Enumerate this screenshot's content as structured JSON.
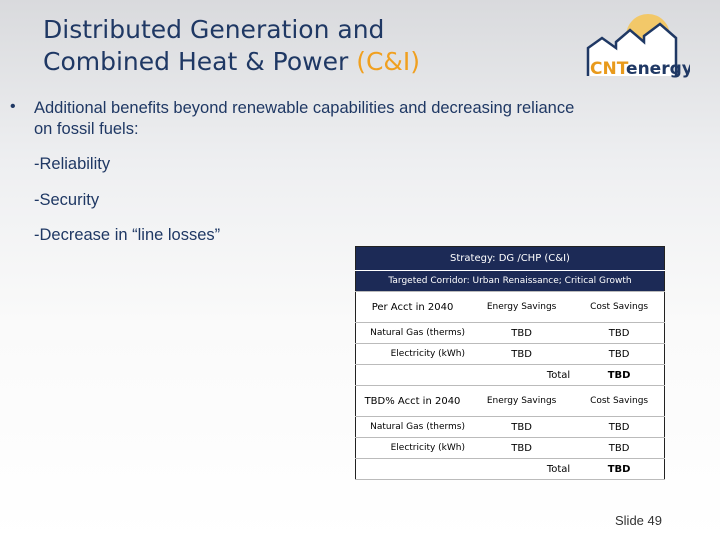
{
  "title": {
    "line1": "Distributed Generation and",
    "line2": "Combined Heat & Power",
    "highlight": "(C&I)"
  },
  "logo": {
    "part1": "CNT",
    "part2": "energy"
  },
  "bullet": "Additional benefits beyond renewable capabilities and decreasing reliance on fossil fuels:",
  "items": [
    "-Reliability",
    "-Security",
    "-Decrease in “line losses”"
  ],
  "table": {
    "title": "Strategy:  DG /CHP (C&I)",
    "subtitle": "Targeted Corridor: Urban Renaissance; Critical Growth",
    "sections": [
      {
        "header": [
          "Per Acct in 2040",
          "Energy Savings",
          "Cost Savings"
        ],
        "rows": [
          [
            "Natural Gas (therms)",
            "TBD",
            "TBD"
          ],
          [
            "Electricity (kWh)",
            "TBD",
            "TBD"
          ]
        ],
        "total": [
          "Total",
          "TBD"
        ]
      },
      {
        "header": [
          "TBD% Acct in 2040",
          "Energy Savings",
          "Cost Savings"
        ],
        "rows": [
          [
            "Natural Gas (therms)",
            "TBD",
            "TBD"
          ],
          [
            "Electricity (kWh)",
            "TBD",
            "TBD"
          ]
        ],
        "total": [
          "Total",
          "TBD"
        ]
      }
    ]
  },
  "footer": "Slide 49"
}
